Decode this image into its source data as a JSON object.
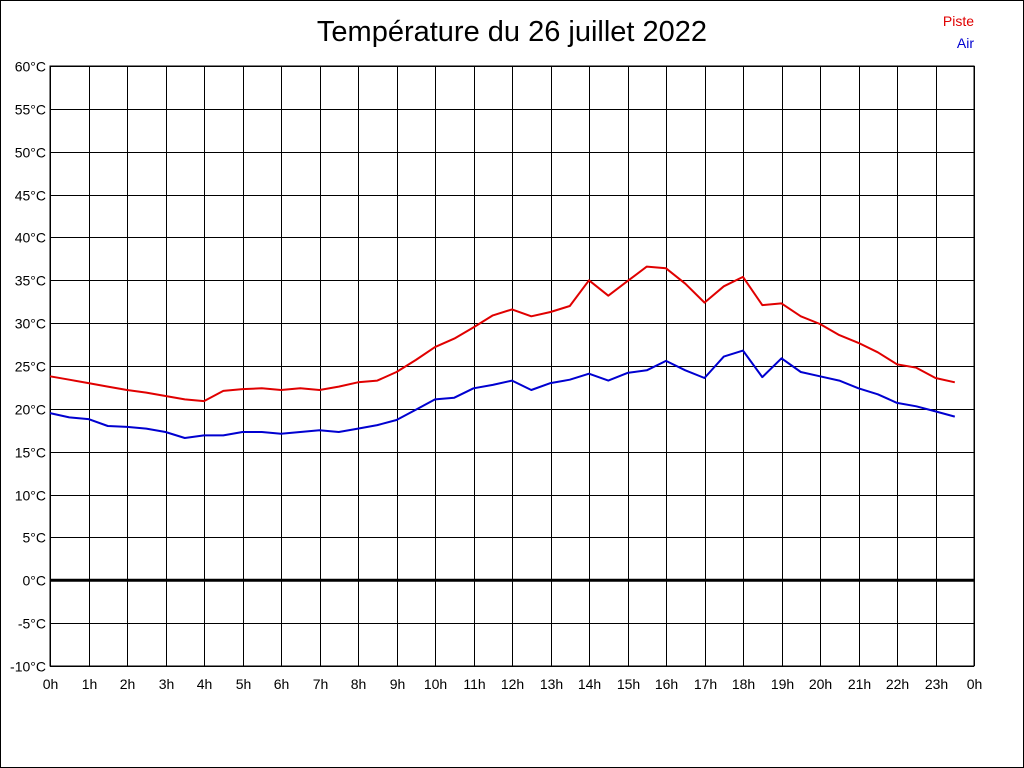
{
  "chart_data": {
    "type": "line",
    "title": "Température du 26 juillet 2022",
    "xlabel": "",
    "ylabel": "",
    "ylim": [
      -10,
      60
    ],
    "xlim": [
      0,
      24
    ],
    "grid": true,
    "legend_position": "top-right",
    "x_tick_labels": [
      "0h",
      "1h",
      "2h",
      "3h",
      "4h",
      "5h",
      "6h",
      "7h",
      "8h",
      "9h",
      "10h",
      "11h",
      "12h",
      "13h",
      "14h",
      "15h",
      "16h",
      "17h",
      "18h",
      "19h",
      "20h",
      "21h",
      "22h",
      "23h",
      "0h"
    ],
    "y_tick_labels": [
      "60°C",
      "55°C",
      "50°C",
      "45°C",
      "40°C",
      "35°C",
      "30°C",
      "25°C",
      "20°C",
      "15°C",
      "10°C",
      "5°C",
      "0°C",
      "-5°C",
      "-10°C"
    ],
    "y_tick_values": [
      60,
      55,
      50,
      45,
      40,
      35,
      30,
      25,
      20,
      15,
      10,
      5,
      0,
      -5,
      -10
    ],
    "x": [
      0,
      0.5,
      1,
      1.5,
      2,
      2.5,
      3,
      3.5,
      4,
      4.5,
      5,
      5.5,
      6,
      6.5,
      7,
      7.5,
      8,
      8.5,
      9,
      9.5,
      10,
      10.5,
      11,
      11.5,
      12,
      12.5,
      13,
      13.5,
      14,
      14.5,
      15,
      15.5,
      16,
      16.5,
      17,
      17.5,
      18,
      18.5,
      19,
      19.5,
      20,
      20.5,
      21,
      21.5,
      22,
      22.5,
      23,
      23.5
    ],
    "series": [
      {
        "name": "Piste",
        "color": "#e00000",
        "values": [
          23.8,
          23.4,
          23.0,
          22.6,
          22.2,
          21.9,
          21.5,
          21.1,
          20.9,
          22.1,
          22.3,
          22.4,
          22.2,
          22.4,
          22.2,
          22.6,
          23.1,
          23.3,
          24.3,
          25.7,
          27.2,
          28.2,
          29.5,
          30.9,
          31.6,
          30.8,
          31.3,
          32.0,
          35.0,
          33.2,
          34.9,
          36.6,
          36.4,
          34.6,
          32.4,
          34.3,
          35.4,
          32.1,
          32.3,
          30.8,
          29.9,
          28.6,
          27.7,
          26.6,
          25.2,
          24.8,
          23.6,
          23.1
        ]
      },
      {
        "name": "Air",
        "color": "#0000d0",
        "values": [
          19.5,
          19.0,
          18.8,
          18.0,
          17.9,
          17.7,
          17.3,
          16.6,
          16.9,
          16.9,
          17.3,
          17.3,
          17.1,
          17.3,
          17.5,
          17.3,
          17.7,
          18.1,
          18.7,
          19.9,
          21.1,
          21.3,
          22.4,
          22.8,
          23.3,
          22.2,
          23.0,
          23.4,
          24.1,
          23.3,
          24.2,
          24.5,
          25.6,
          24.5,
          23.6,
          26.1,
          26.8,
          23.7,
          25.9,
          24.3,
          23.8,
          23.3,
          22.4,
          21.7,
          20.7,
          20.3,
          19.7,
          19.1
        ]
      }
    ]
  }
}
